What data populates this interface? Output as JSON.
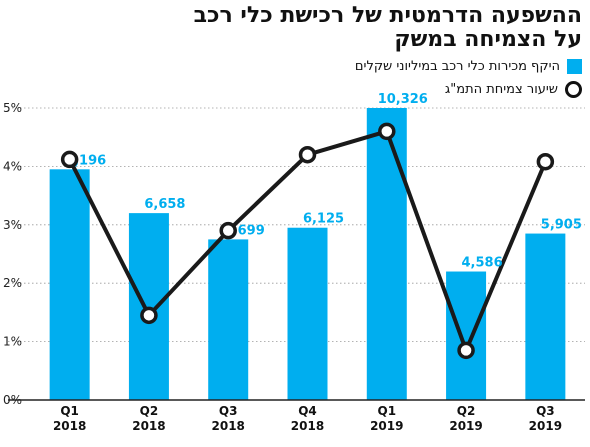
{
  "title": [
    "ההשפעה הדרמטית של רכישת כלי רכב",
    "על הצמיחה במשק"
  ],
  "legend": {
    "bars": "היקף מכירות כלי רכב במיליוני שקלים",
    "line": "שיעור צמיחת התמ\"ג"
  },
  "colors": {
    "bar": "#00aeef",
    "label": "#00aeef",
    "line": "#1a1a1a",
    "marker_fill": "#ffffff"
  },
  "chart_data": {
    "type": "bar",
    "categories": [
      "Q1",
      "Q2",
      "Q3",
      "Q4",
      "Q1",
      "Q2",
      "Q3"
    ],
    "years": [
      "2018",
      "2018",
      "2018",
      "2018",
      "2019",
      "2019",
      "2019"
    ],
    "series": [
      {
        "name": "היקף מכירות כלי רכב במיליוני שקלים",
        "type": "bar",
        "values": [
          8196,
          6658,
          5699,
          6125,
          10326,
          4586,
          5905
        ],
        "labels": [
          "8,196",
          "6,658",
          "5,699",
          "6,125",
          "10,326",
          "4,586",
          "5,905"
        ],
        "bar_heights_percent": [
          3.95,
          3.2,
          2.75,
          2.95,
          5.0,
          2.2,
          2.85
        ]
      },
      {
        "name": "שיעור צמיחת התמ\"ג",
        "type": "line",
        "values": [
          4.12,
          1.45,
          2.9,
          4.2,
          4.6,
          0.85,
          4.08
        ]
      }
    ],
    "yaxis": {
      "ticks": [
        "0%",
        "1%",
        "2%",
        "3%",
        "4%",
        "5%"
      ],
      "ylim": [
        0,
        5
      ]
    },
    "grid": true
  }
}
